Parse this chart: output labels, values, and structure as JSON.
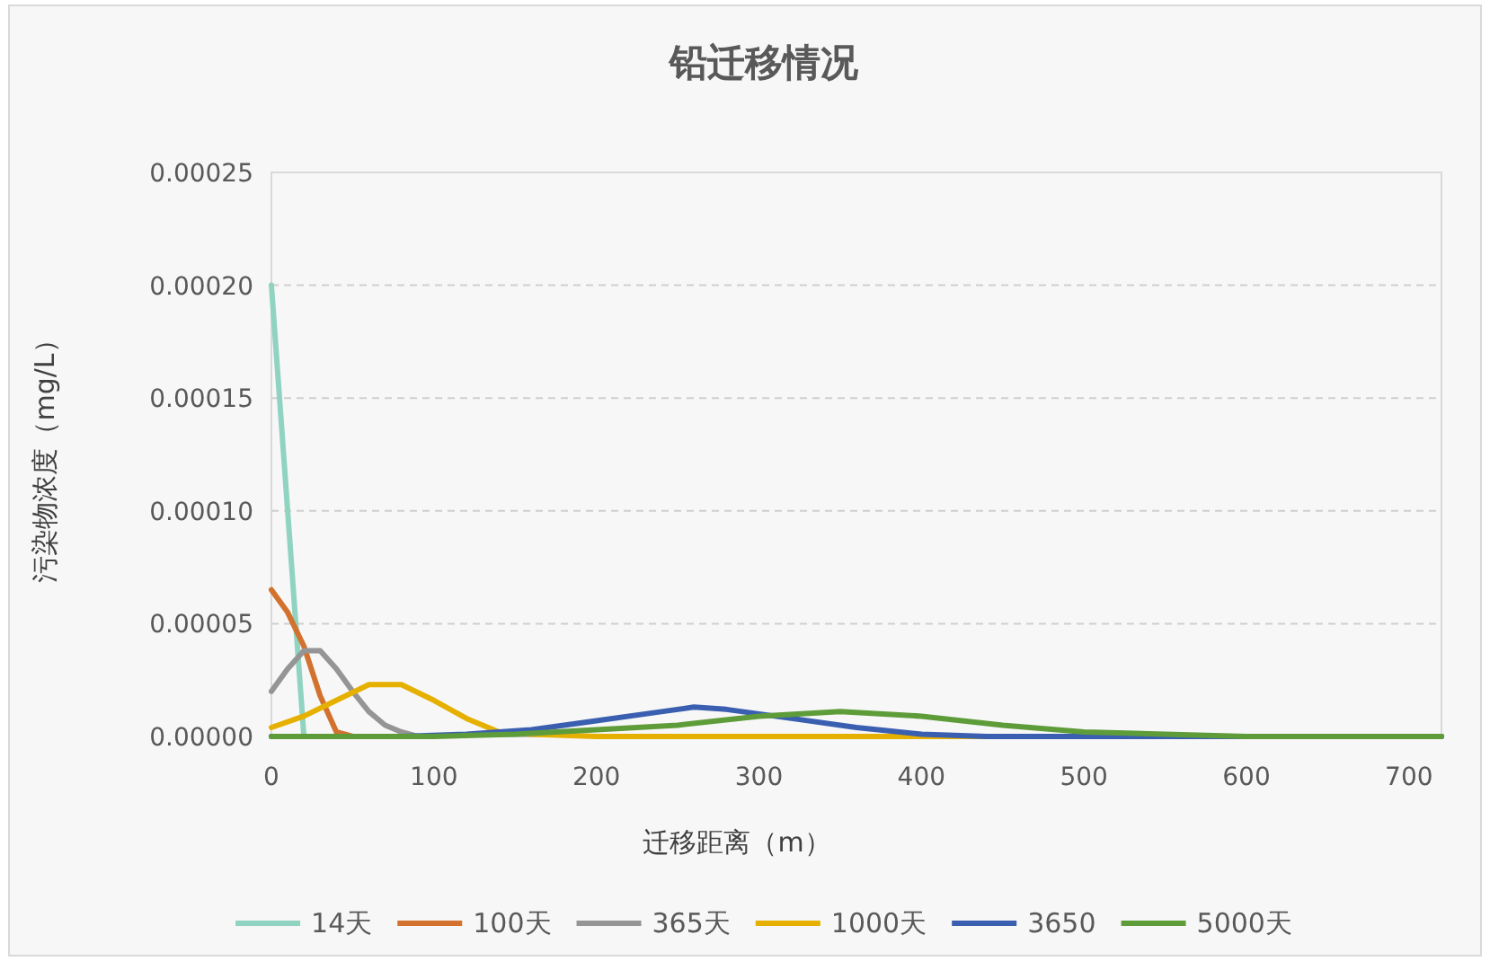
{
  "chart_data": {
    "type": "line",
    "title": "铅迁移情况",
    "xlabel": "迁移距离（m）",
    "ylabel": "污染物浓度（mg/L）",
    "xlim": [
      0,
      720
    ],
    "xticks": [
      0,
      100,
      200,
      300,
      400,
      500,
      600,
      700
    ],
    "ylim": [
      0,
      0.00025
    ],
    "yticks": [
      {
        "value": 0,
        "label": "0.00000"
      },
      {
        "value": 5e-05,
        "label": "0.00005"
      },
      {
        "value": 0.0001,
        "label": "0.00010"
      },
      {
        "value": 0.00015,
        "label": "0.00015"
      },
      {
        "value": 0.0002,
        "label": "0.00020"
      },
      {
        "value": 0.00025,
        "label": "0.00025"
      }
    ],
    "grid": "y",
    "legend": "bottom",
    "marker": "none",
    "line_style": "solid",
    "series": [
      {
        "name": "14天",
        "color": "#8fd3c0",
        "x": [
          0,
          10,
          20
        ],
        "values": [
          0.0002,
          0.0001,
          0
        ]
      },
      {
        "name": "100天",
        "color": "#d2722e",
        "x": [
          0,
          10,
          20,
          30,
          40,
          50
        ],
        "values": [
          6.5e-05,
          5.5e-05,
          4e-05,
          1.8e-05,
          2e-06,
          0
        ]
      },
      {
        "name": "365天",
        "color": "#959595",
        "x": [
          0,
          10,
          20,
          30,
          40,
          50,
          60,
          70,
          80,
          90,
          100
        ],
        "values": [
          2e-05,
          3e-05,
          3.8e-05,
          3.8e-05,
          3e-05,
          2e-05,
          1.1e-05,
          5e-06,
          2e-06,
          0,
          0
        ]
      },
      {
        "name": "1000天",
        "color": "#e6b000",
        "x": [
          0,
          20,
          40,
          60,
          80,
          100,
          120,
          140,
          160,
          200,
          720
        ],
        "values": [
          4e-06,
          9e-06,
          1.6e-05,
          2.3e-05,
          2.3e-05,
          1.6e-05,
          8e-06,
          2e-06,
          1e-06,
          0,
          0
        ]
      },
      {
        "name": "3650",
        "color": "#3b5fb0",
        "x": [
          0,
          80,
          120,
          160,
          200,
          240,
          260,
          280,
          320,
          360,
          400,
          440,
          480,
          720
        ],
        "values": [
          0,
          0,
          1e-06,
          3e-06,
          7e-06,
          1.1e-05,
          1.3e-05,
          1.2e-05,
          8e-06,
          4e-06,
          1e-06,
          0,
          0,
          0
        ]
      },
      {
        "name": "5000天",
        "color": "#5e9c3a",
        "x": [
          0,
          100,
          150,
          200,
          250,
          300,
          350,
          400,
          450,
          500,
          550,
          600,
          720
        ],
        "values": [
          0,
          0,
          1e-06,
          3e-06,
          5e-06,
          9e-06,
          1.1e-05,
          9e-06,
          5e-06,
          2e-06,
          1e-06,
          0,
          0
        ]
      }
    ]
  }
}
